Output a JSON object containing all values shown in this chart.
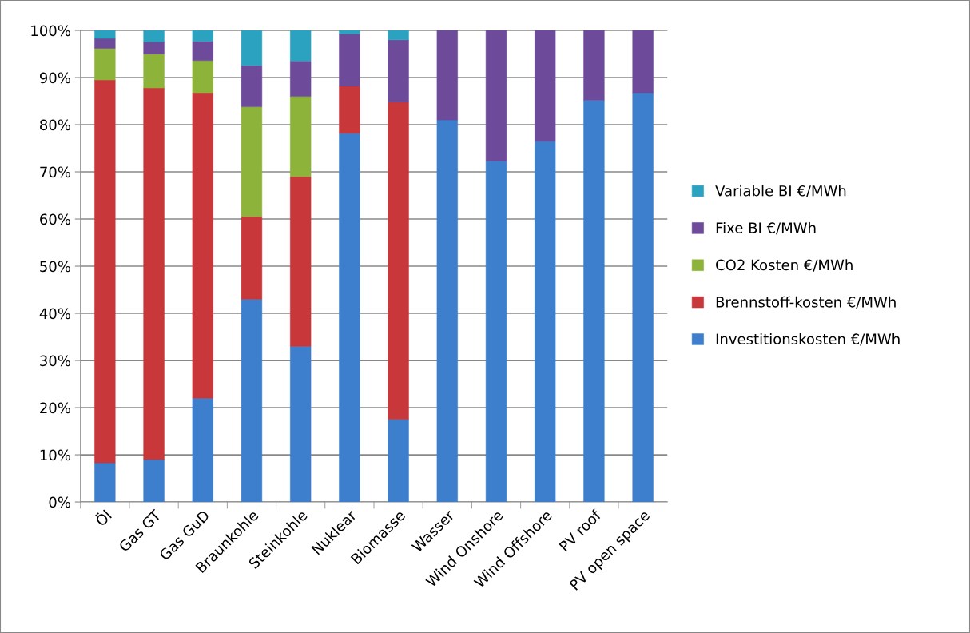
{
  "chart_data": {
    "type": "bar",
    "stacked": true,
    "categories": [
      "Öl",
      "Gas GT",
      "Gas GuD",
      "Braunkohle",
      "Steinkohle",
      "Nuklear",
      "Biomasse",
      "Wasser",
      "Wind Onshore",
      "Wind Offshore",
      "PV roof",
      "PV open space"
    ],
    "series": [
      {
        "name": "Investitionskosten €/MWh",
        "color": "#3d7fcc",
        "values": [
          8.3,
          9,
          22,
          43,
          33,
          78.2,
          17.5,
          81,
          72.3,
          76.5,
          85.2,
          86.8
        ]
      },
      {
        "name": "Brennstoff-kosten €/MWh",
        "color": "#c8373a",
        "values": [
          81.2,
          78.8,
          64.8,
          17.5,
          36,
          10,
          67.3,
          null,
          null,
          null,
          null,
          null
        ]
      },
      {
        "name": "CO2 Kosten €/MWh",
        "color": "#8db33a",
        "values": [
          6.7,
          7.2,
          6.8,
          23.3,
          17,
          null,
          null,
          null,
          null,
          null,
          null,
          null
        ]
      },
      {
        "name": "Fixe BI €/MWh",
        "color": "#6e4a9a",
        "values": [
          2.1,
          2.6,
          4.1,
          8.8,
          7.5,
          11.1,
          13.2,
          19,
          27.7,
          23.5,
          14.8,
          13.2
        ]
      },
      {
        "name": "Variable BI €/MWh",
        "color": "#2ba3c0",
        "values": [
          1.7,
          2.4,
          2.3,
          7.4,
          6.5,
          0.7,
          2,
          null,
          null,
          null,
          null,
          null
        ]
      }
    ],
    "ylim": [
      0,
      100
    ],
    "yticks": [
      {
        "value": 0,
        "label": "0%"
      },
      {
        "value": 10,
        "label": "10%"
      },
      {
        "value": 20,
        "label": "20%"
      },
      {
        "value": 30,
        "label": "30%"
      },
      {
        "value": 40,
        "label": "40%"
      },
      {
        "value": 50,
        "label": "50%"
      },
      {
        "value": 60,
        "label": "60%"
      },
      {
        "value": 70,
        "label": "70%"
      },
      {
        "value": 80,
        "label": "80%"
      },
      {
        "value": 90,
        "label": "90%"
      },
      {
        "value": 100,
        "label": "100%"
      }
    ],
    "grid": "y",
    "legend": "right"
  }
}
